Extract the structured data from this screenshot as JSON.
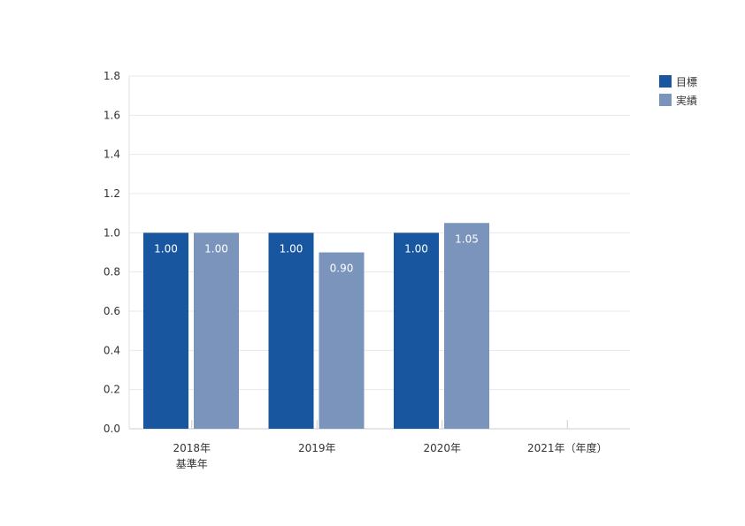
{
  "chart_data": {
    "type": "bar",
    "categories": [
      "2018年\n基準年",
      "2019年",
      "2020年",
      "2021年（年度）"
    ],
    "series": [
      {
        "name": "目標",
        "color": "#1857a0",
        "values": [
          1.0,
          1.0,
          1.0,
          null
        ]
      },
      {
        "name": "実績",
        "color": "#7b94bc",
        "values": [
          1.0,
          0.9,
          1.05,
          null
        ]
      }
    ],
    "data_labels": [
      [
        "1.00",
        "1.00",
        "1.00",
        ""
      ],
      [
        "1.00",
        "0.90",
        "1.05",
        ""
      ]
    ],
    "ylim": [
      0,
      1.8
    ],
    "yticks": [
      "0.0",
      "0.2",
      "0.4",
      "0.6",
      "0.8",
      "1.0",
      "1.2",
      "1.4",
      "1.6",
      "1.8"
    ],
    "ytick_values": [
      0,
      0.2,
      0.4,
      0.6,
      0.8,
      1.0,
      1.2,
      1.4,
      1.6,
      1.8
    ],
    "grid": true,
    "legend_position": "top-right",
    "title": "",
    "xlabel": "",
    "ylabel": ""
  }
}
